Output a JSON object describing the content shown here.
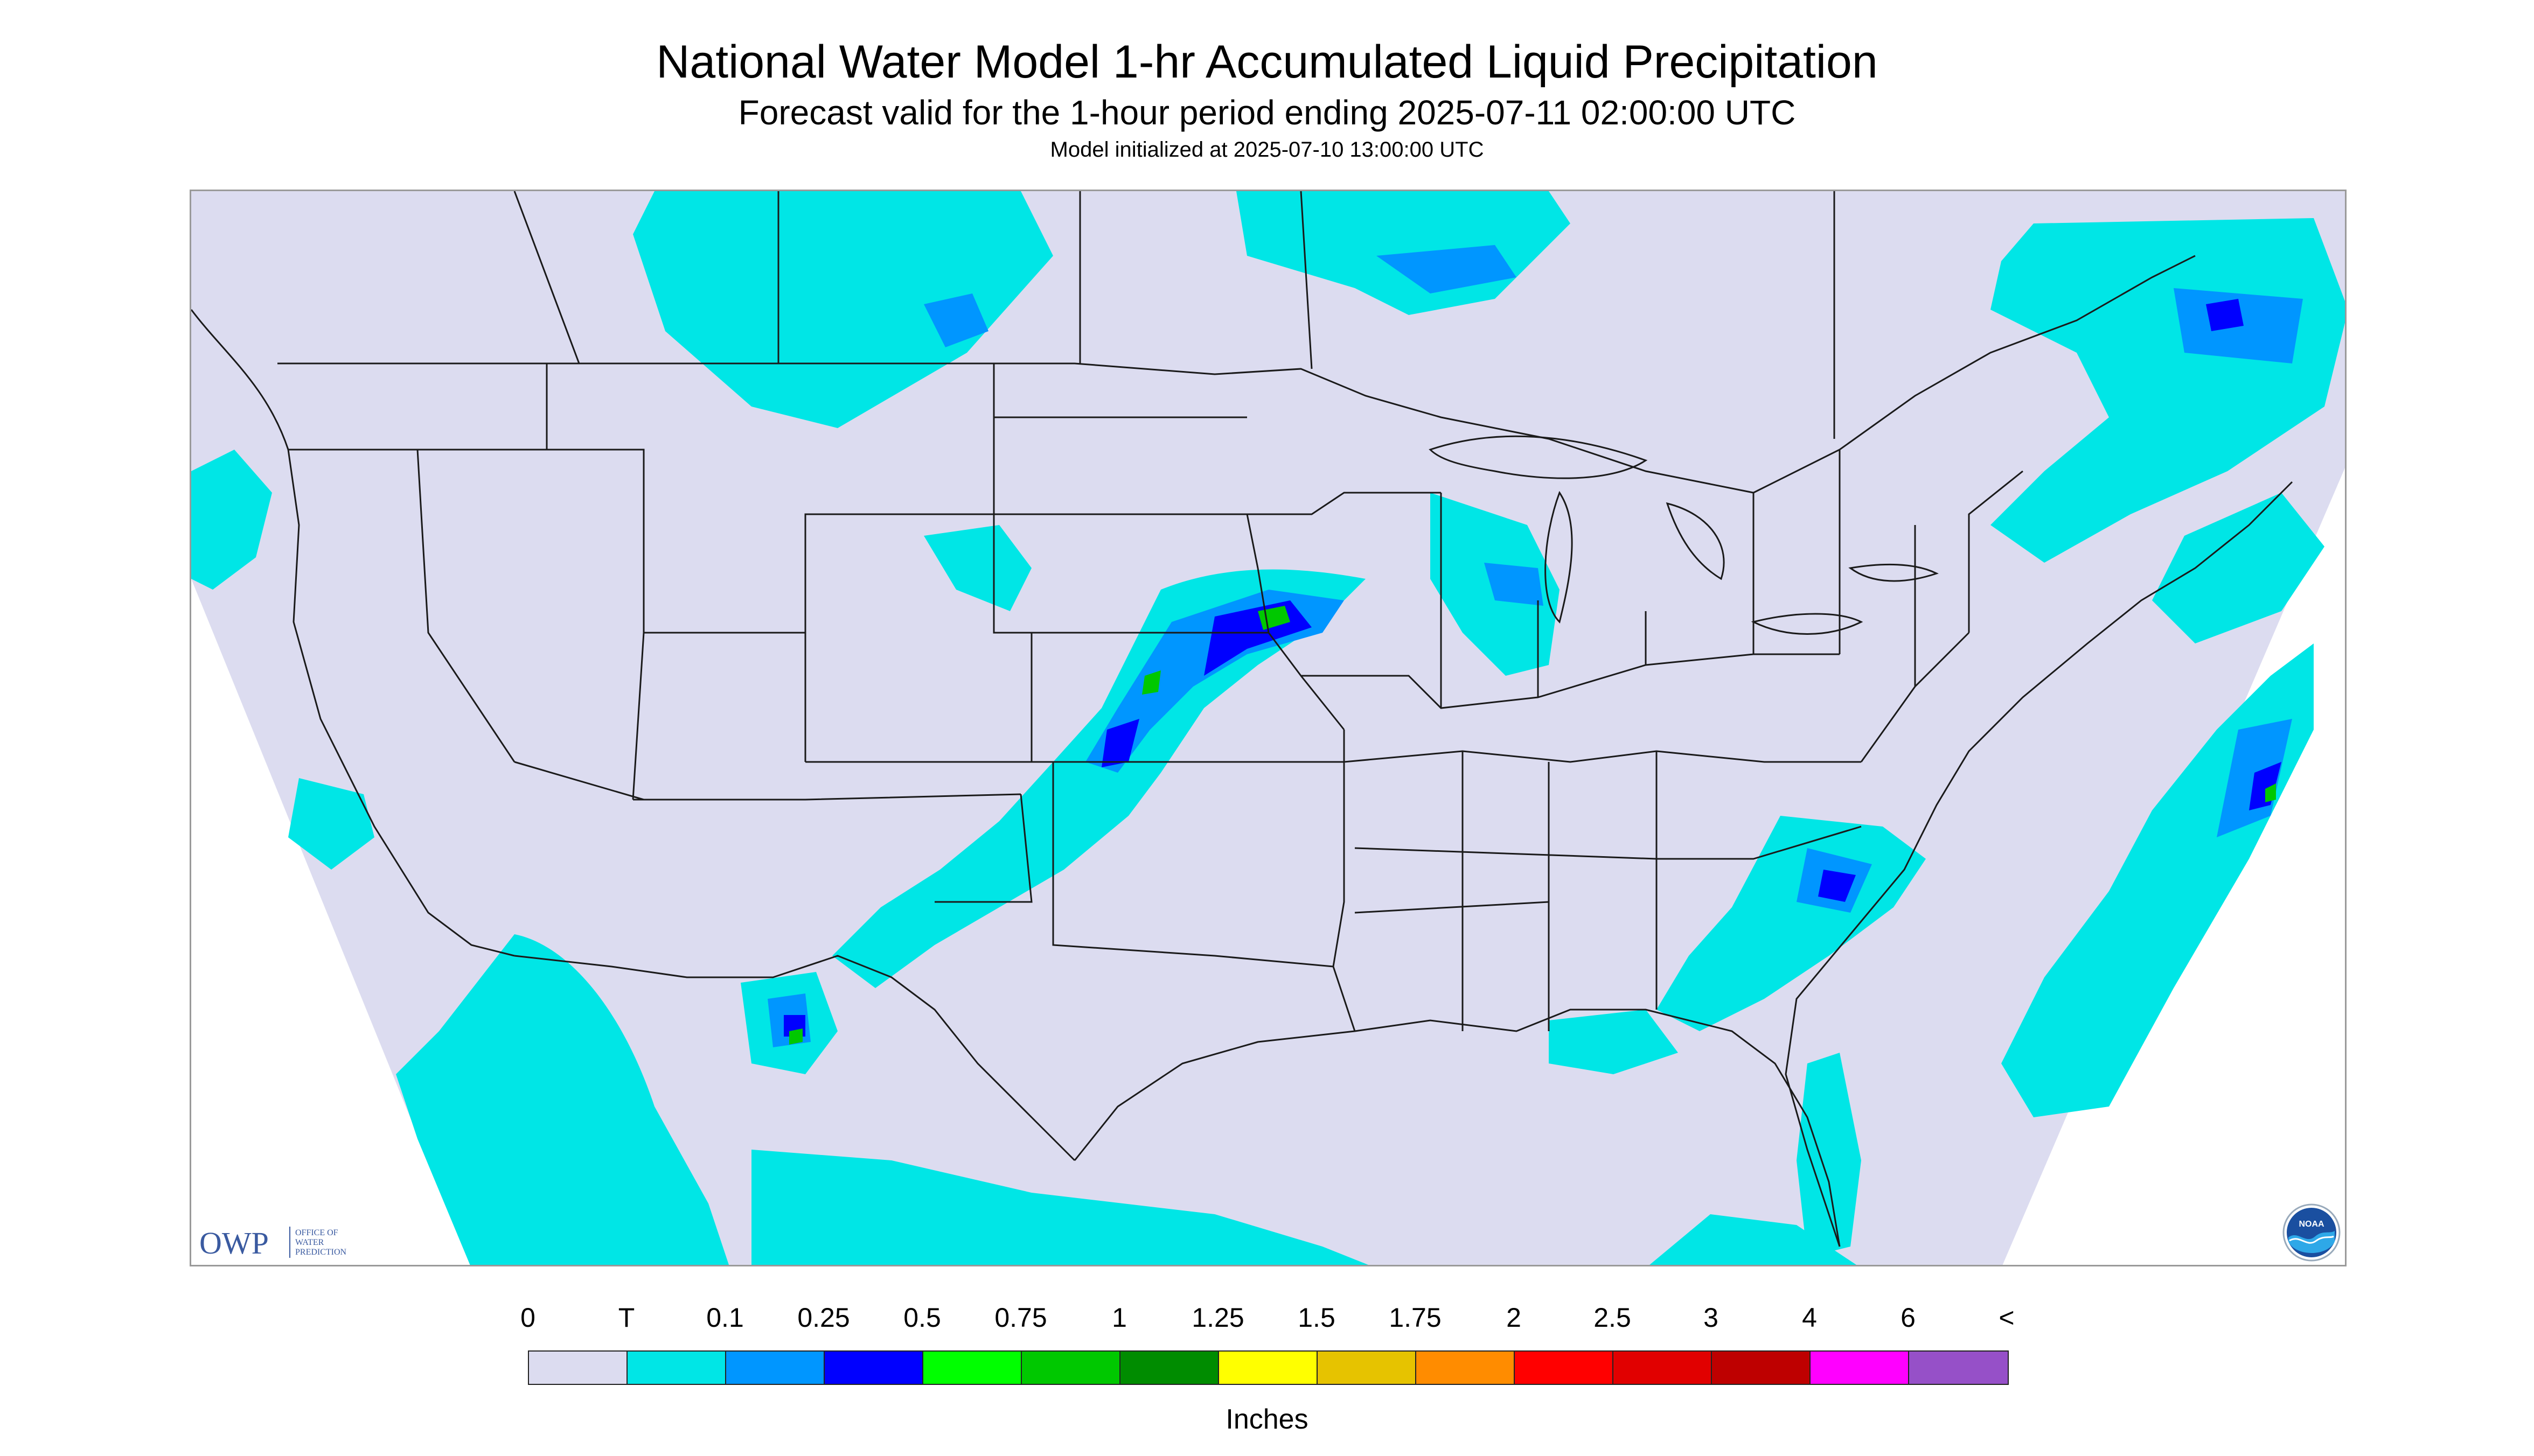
{
  "title": "National Water Model 1-hr Accumulated Liquid Precipitation",
  "subtitle": "Forecast valid for the 1-hour period ending 2025-07-11 02:00:00 UTC",
  "init_line": "Model initialized at 2025-07-10 13:00:00 UTC",
  "map": {
    "background_color": "#dcdcf0",
    "outside_projection_color": "#ffffff",
    "boundary_color": "#1a1a1a",
    "region": "Contiguous United States with parts of Canada and Mexico"
  },
  "logos": {
    "owp_mark": "OWP",
    "owp_text_lines": [
      "OFFICE OF",
      "WATER",
      "PREDICTION"
    ],
    "noaa_mark": "NOAA"
  },
  "legend": {
    "labels": [
      "0",
      "T",
      "0.1",
      "0.25",
      "0.5",
      "0.75",
      "1",
      "1.25",
      "1.5",
      "1.75",
      "2",
      "2.5",
      "3",
      "4",
      "6",
      "<"
    ],
    "colors": [
      "#dcdcf0",
      "#00e6e6",
      "#0096ff",
      "#0000ff",
      "#00ff00",
      "#00c800",
      "#008c00",
      "#ffff00",
      "#e6c300",
      "#ff8c00",
      "#ff0000",
      "#e10000",
      "#be0000",
      "#ff00ff",
      "#9650c8"
    ],
    "unit": "Inches"
  },
  "icons": [
    "owp-logo-icon",
    "noaa-logo-icon"
  ]
}
